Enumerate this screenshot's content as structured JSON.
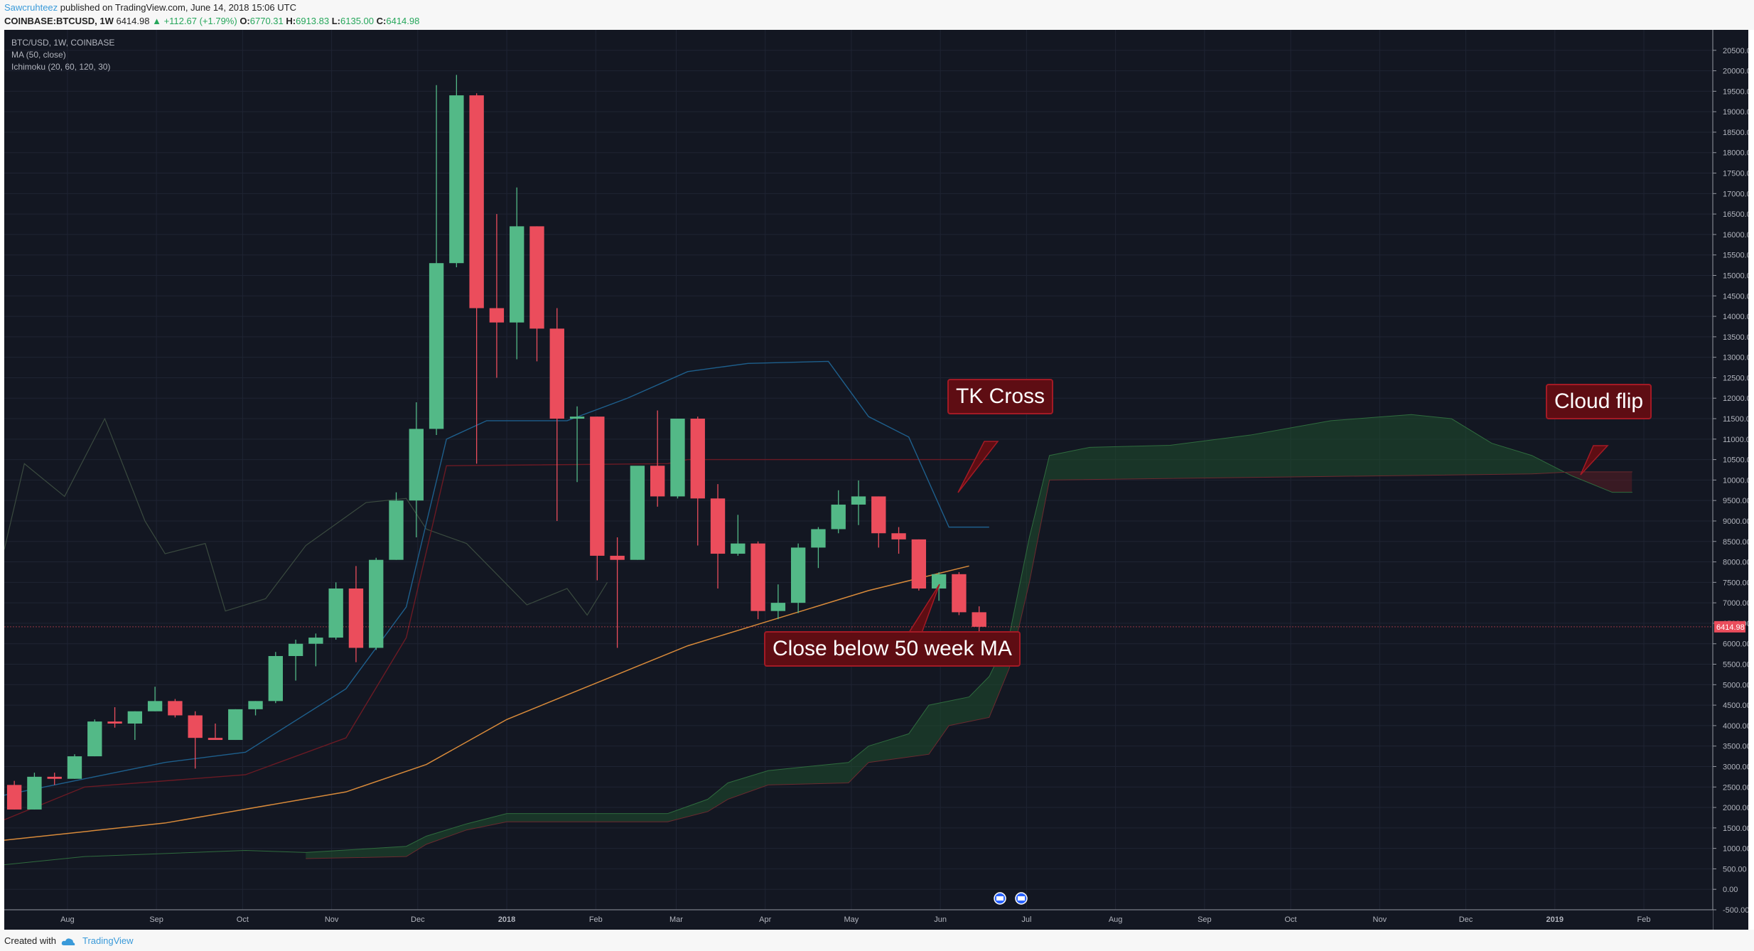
{
  "header": {
    "publisher": "Sawcruhteez",
    "published_text": " published on TradingView.com, June 14, 2018 15:06 UTC",
    "symbol": "COINBASE:BTCUSD, 1W",
    "last": "6414.98",
    "change": "▲ +112.67 (+1.79%)",
    "open_label": "O:",
    "open": "6770.31",
    "high_label": "H:",
    "high": "6913.83",
    "low_label": "L:",
    "low": "6135.00",
    "close_label": "C:",
    "close": "6414.98"
  },
  "legend": {
    "line1": "BTC/USD, 1W, COINBASE",
    "line2": "MA (50, close)",
    "line3": "Ichimoku (20, 60, 120, 30)"
  },
  "footer": {
    "created_with": "Created with",
    "brand": "TradingView"
  },
  "annotations": {
    "tk_cross": "TK Cross",
    "close_below": "Close below 50 week MA",
    "cloud_flip": "Cloud flip"
  },
  "colors": {
    "background": "#131722",
    "up": "#53b987",
    "down": "#eb4d5c",
    "ma": "#d88a3a",
    "tenkan": "#1e5f8c",
    "kijun": "#6b1a24",
    "cloud_green": "#1f4e2e",
    "cloud_red": "#5a1d24",
    "price_label": "#eb4d5c"
  },
  "chart_data": {
    "type": "candlestick",
    "symbol": "BTC/USD",
    "interval": "1W",
    "exchange": "COINBASE",
    "ylim": [
      -500,
      21000
    ],
    "y_ticks": [
      "20500.00",
      "20000.00",
      "19500.00",
      "19000.00",
      "18500.00",
      "18000.00",
      "17500.00",
      "17000.00",
      "16500.00",
      "16000.00",
      "15500.00",
      "15000.00",
      "14500.00",
      "14000.00",
      "13500.00",
      "13000.00",
      "12500.00",
      "12000.00",
      "11500.00",
      "11000.00",
      "10500.00",
      "10000.00",
      "9500.00",
      "9000.00",
      "8500.00",
      "8000.00",
      "7500.00",
      "7000.00",
      "6500.00",
      "6000.00",
      "5500.00",
      "5000.00",
      "4500.00",
      "4000.00",
      "3500.00",
      "3000.00",
      "2500.00",
      "2000.00",
      "1500.00",
      "1000.00",
      "500.00",
      "0.00",
      "-500.00"
    ],
    "x_ticks": [
      {
        "label": "Aug",
        "date": "2017-08-01"
      },
      {
        "label": "Sep",
        "date": "2017-09-01"
      },
      {
        "label": "Oct",
        "date": "2017-10-01"
      },
      {
        "label": "Nov",
        "date": "2017-11-01"
      },
      {
        "label": "Dec",
        "date": "2017-12-01"
      },
      {
        "label": "2018",
        "date": "2018-01-01"
      },
      {
        "label": "Feb",
        "date": "2018-02-01"
      },
      {
        "label": "Mar",
        "date": "2018-03-01"
      },
      {
        "label": "Apr",
        "date": "2018-04-01"
      },
      {
        "label": "May",
        "date": "2018-05-01"
      },
      {
        "label": "Jun",
        "date": "2018-06-01"
      },
      {
        "label": "Jul",
        "date": "2018-07-01"
      },
      {
        "label": "Aug",
        "date": "2018-08-01"
      },
      {
        "label": "Sep",
        "date": "2018-09-01"
      },
      {
        "label": "Oct",
        "date": "2018-10-01"
      },
      {
        "label": "Nov",
        "date": "2018-11-01"
      },
      {
        "label": "Dec",
        "date": "2018-12-01"
      },
      {
        "label": "2019",
        "date": "2019-01-01"
      },
      {
        "label": "Feb",
        "date": "2019-02-01"
      }
    ],
    "date_range": [
      "2017-07-10",
      "2019-02-25"
    ],
    "last_price_label": "6414.98",
    "candles": [
      {
        "date": "2017-07-10",
        "o": 2550,
        "h": 2650,
        "l": 1950,
        "c": 1950
      },
      {
        "date": "2017-07-17",
        "o": 1950,
        "h": 2850,
        "l": 1950,
        "c": 2750
      },
      {
        "date": "2017-07-24",
        "o": 2750,
        "h": 2850,
        "l": 2550,
        "c": 2700
      },
      {
        "date": "2017-07-31",
        "o": 2700,
        "h": 3300,
        "l": 2700,
        "c": 3250
      },
      {
        "date": "2017-08-07",
        "o": 3250,
        "h": 4150,
        "l": 3250,
        "c": 4100
      },
      {
        "date": "2017-08-14",
        "o": 4100,
        "h": 4450,
        "l": 3950,
        "c": 4050
      },
      {
        "date": "2017-08-21",
        "o": 4050,
        "h": 4350,
        "l": 3650,
        "c": 4350
      },
      {
        "date": "2017-08-28",
        "o": 4350,
        "h": 4950,
        "l": 4350,
        "c": 4600
      },
      {
        "date": "2017-09-04",
        "o": 4600,
        "h": 4650,
        "l": 4200,
        "c": 4250
      },
      {
        "date": "2017-09-11",
        "o": 4250,
        "h": 4350,
        "l": 2950,
        "c": 3700
      },
      {
        "date": "2017-09-18",
        "o": 3700,
        "h": 4050,
        "l": 3650,
        "c": 3650
      },
      {
        "date": "2017-09-25",
        "o": 3650,
        "h": 4400,
        "l": 3650,
        "c": 4400
      },
      {
        "date": "2017-10-02",
        "o": 4400,
        "h": 4600,
        "l": 4250,
        "c": 4600
      },
      {
        "date": "2017-10-09",
        "o": 4600,
        "h": 5800,
        "l": 4550,
        "c": 5700
      },
      {
        "date": "2017-10-16",
        "o": 5700,
        "h": 6100,
        "l": 5100,
        "c": 6000
      },
      {
        "date": "2017-10-23",
        "o": 6000,
        "h": 6250,
        "l": 5450,
        "c": 6150
      },
      {
        "date": "2017-10-30",
        "o": 6150,
        "h": 7500,
        "l": 6100,
        "c": 7350
      },
      {
        "date": "2017-11-06",
        "o": 7350,
        "h": 7900,
        "l": 5550,
        "c": 5900
      },
      {
        "date": "2017-11-13",
        "o": 5900,
        "h": 8100,
        "l": 5850,
        "c": 8050
      },
      {
        "date": "2017-11-20",
        "o": 8050,
        "h": 9700,
        "l": 8050,
        "c": 9500
      },
      {
        "date": "2017-11-27",
        "o": 9500,
        "h": 11900,
        "l": 8600,
        "c": 11250
      },
      {
        "date": "2017-12-04",
        "o": 11250,
        "h": 19650,
        "l": 11100,
        "c": 15300
      },
      {
        "date": "2017-12-11",
        "o": 15300,
        "h": 19900,
        "l": 15200,
        "c": 19400
      },
      {
        "date": "2017-12-18",
        "o": 19400,
        "h": 19450,
        "l": 10400,
        "c": 14200
      },
      {
        "date": "2017-12-25",
        "o": 14200,
        "h": 16500,
        "l": 12500,
        "c": 13850
      },
      {
        "date": "2018-01-01",
        "o": 13850,
        "h": 17150,
        "l": 12950,
        "c": 16200
      },
      {
        "date": "2018-01-08",
        "o": 16200,
        "h": 16200,
        "l": 12900,
        "c": 13700
      },
      {
        "date": "2018-01-15",
        "o": 13700,
        "h": 14200,
        "l": 9000,
        "c": 11500
      },
      {
        "date": "2018-01-22",
        "o": 11500,
        "h": 11800,
        "l": 9950,
        "c": 11550
      },
      {
        "date": "2018-01-29",
        "o": 11550,
        "h": 11550,
        "l": 7550,
        "c": 8150
      },
      {
        "date": "2018-02-05",
        "o": 8150,
        "h": 8600,
        "l": 5900,
        "c": 8050
      },
      {
        "date": "2018-02-12",
        "o": 8050,
        "h": 10300,
        "l": 8050,
        "c": 10350
      },
      {
        "date": "2018-02-19",
        "o": 10350,
        "h": 11700,
        "l": 9350,
        "c": 9600
      },
      {
        "date": "2018-02-26",
        "o": 9600,
        "h": 11500,
        "l": 9550,
        "c": 11500
      },
      {
        "date": "2018-03-05",
        "o": 11500,
        "h": 11550,
        "l": 8400,
        "c": 9550
      },
      {
        "date": "2018-03-12",
        "o": 9550,
        "h": 9900,
        "l": 7350,
        "c": 8200
      },
      {
        "date": "2018-03-19",
        "o": 8200,
        "h": 9150,
        "l": 8150,
        "c": 8450
      },
      {
        "date": "2018-03-26",
        "o": 8450,
        "h": 8500,
        "l": 6600,
        "c": 6800
      },
      {
        "date": "2018-04-02",
        "o": 6800,
        "h": 7450,
        "l": 6600,
        "c": 7000
      },
      {
        "date": "2018-04-09",
        "o": 7000,
        "h": 8450,
        "l": 6750,
        "c": 8350
      },
      {
        "date": "2018-04-16",
        "o": 8350,
        "h": 8850,
        "l": 7850,
        "c": 8800
      },
      {
        "date": "2018-04-23",
        "o": 8800,
        "h": 9750,
        "l": 8700,
        "c": 9400
      },
      {
        "date": "2018-04-30",
        "o": 9400,
        "h": 9990,
        "l": 8900,
        "c": 9600
      },
      {
        "date": "2018-05-07",
        "o": 9600,
        "h": 9600,
        "l": 8350,
        "c": 8700
      },
      {
        "date": "2018-05-14",
        "o": 8700,
        "h": 8850,
        "l": 8200,
        "c": 8550
      },
      {
        "date": "2018-05-21",
        "o": 8550,
        "h": 8550,
        "l": 7300,
        "c": 7350
      },
      {
        "date": "2018-05-28",
        "o": 7350,
        "h": 7750,
        "l": 7050,
        "c": 7700
      },
      {
        "date": "2018-06-04",
        "o": 7700,
        "h": 7750,
        "l": 6700,
        "c": 6770
      },
      {
        "date": "2018-06-11",
        "o": 6770,
        "h": 6914,
        "l": 6135,
        "c": 6415
      }
    ],
    "ma50": [
      {
        "date": "2017-07-10",
        "v": 1200
      },
      {
        "date": "2017-09-04",
        "v": 1620
      },
      {
        "date": "2017-11-06",
        "v": 2380
      },
      {
        "date": "2017-12-04",
        "v": 3050
      },
      {
        "date": "2018-01-01",
        "v": 4150
      },
      {
        "date": "2018-02-05",
        "v": 5150
      },
      {
        "date": "2018-03-05",
        "v": 5950
      },
      {
        "date": "2018-04-02",
        "v": 6550
      },
      {
        "date": "2018-05-07",
        "v": 7300
      },
      {
        "date": "2018-06-11",
        "v": 7900
      }
    ],
    "tenkan": [
      {
        "date": "2017-07-10",
        "v": 2300
      },
      {
        "date": "2017-08-07",
        "v": 2700
      },
      {
        "date": "2017-09-04",
        "v": 3100
      },
      {
        "date": "2017-10-02",
        "v": 3350
      },
      {
        "date": "2017-11-06",
        "v": 4900
      },
      {
        "date": "2017-11-27",
        "v": 6900
      },
      {
        "date": "2017-12-11",
        "v": 11000
      },
      {
        "date": "2017-12-25",
        "v": 11450
      },
      {
        "date": "2018-01-22",
        "v": 11450
      },
      {
        "date": "2018-02-12",
        "v": 12000
      },
      {
        "date": "2018-03-05",
        "v": 12650
      },
      {
        "date": "2018-03-26",
        "v": 12850
      },
      {
        "date": "2018-04-23",
        "v": 12900
      },
      {
        "date": "2018-05-07",
        "v": 11550
      },
      {
        "date": "2018-05-21",
        "v": 11050
      },
      {
        "date": "2018-06-04",
        "v": 8850
      },
      {
        "date": "2018-06-18",
        "v": 8850
      }
    ],
    "kijun": [
      {
        "date": "2017-07-10",
        "v": 1700
      },
      {
        "date": "2017-08-07",
        "v": 2500
      },
      {
        "date": "2017-10-02",
        "v": 2800
      },
      {
        "date": "2017-11-06",
        "v": 3700
      },
      {
        "date": "2017-11-27",
        "v": 6150
      },
      {
        "date": "2017-12-11",
        "v": 10350
      },
      {
        "date": "2018-02-26",
        "v": 10400
      },
      {
        "date": "2018-03-05",
        "v": 10500
      },
      {
        "date": "2018-06-18",
        "v": 10500
      }
    ],
    "chikou": [
      {
        "date": "2017-07-10",
        "v": 8300
      },
      {
        "date": "2017-07-17",
        "v": 10400
      },
      {
        "date": "2017-07-31",
        "v": 9600
      },
      {
        "date": "2017-08-14",
        "v": 11500
      },
      {
        "date": "2017-08-28",
        "v": 9000
      },
      {
        "date": "2017-09-04",
        "v": 8200
      },
      {
        "date": "2017-09-18",
        "v": 8450
      },
      {
        "date": "2017-09-25",
        "v": 6800
      },
      {
        "date": "2017-10-09",
        "v": 7100
      },
      {
        "date": "2017-10-23",
        "v": 8400
      },
      {
        "date": "2017-11-13",
        "v": 9450
      },
      {
        "date": "2017-11-27",
        "v": 9550
      },
      {
        "date": "2017-12-04",
        "v": 8800
      },
      {
        "date": "2017-12-18",
        "v": 8450
      },
      {
        "date": "2018-01-08",
        "v": 6950
      },
      {
        "date": "2018-01-22",
        "v": 7350
      },
      {
        "date": "2018-01-29",
        "v": 6700
      },
      {
        "date": "2018-02-05",
        "v": 7500
      }
    ],
    "cloud_top": [
      {
        "date": "2017-07-10",
        "v": 600
      },
      {
        "date": "2017-08-07",
        "v": 800
      },
      {
        "date": "2017-10-02",
        "v": 950
      },
      {
        "date": "2017-10-23",
        "v": 900
      },
      {
        "date": "2017-11-27",
        "v": 1050
      },
      {
        "date": "2017-12-04",
        "v": 1300
      },
      {
        "date": "2017-12-18",
        "v": 1600
      },
      {
        "date": "2018-01-01",
        "v": 1850
      },
      {
        "date": "2018-02-26",
        "v": 1850
      },
      {
        "date": "2018-03-12",
        "v": 2200
      },
      {
        "date": "2018-03-19",
        "v": 2600
      },
      {
        "date": "2018-04-02",
        "v": 2900
      },
      {
        "date": "2018-04-30",
        "v": 3100
      },
      {
        "date": "2018-05-07",
        "v": 3500
      },
      {
        "date": "2018-05-21",
        "v": 3800
      },
      {
        "date": "2018-05-28",
        "v": 4500
      },
      {
        "date": "2018-06-11",
        "v": 4700
      },
      {
        "date": "2018-06-18",
        "v": 5200
      },
      {
        "date": "2018-06-25",
        "v": 6200
      },
      {
        "date": "2018-07-02",
        "v": 8600
      },
      {
        "date": "2018-07-09",
        "v": 10600
      },
      {
        "date": "2018-07-23",
        "v": 10800
      },
      {
        "date": "2018-08-20",
        "v": 10850
      },
      {
        "date": "2018-09-17",
        "v": 11100
      },
      {
        "date": "2018-10-15",
        "v": 11450
      },
      {
        "date": "2018-11-12",
        "v": 11600
      },
      {
        "date": "2018-11-26",
        "v": 11500
      },
      {
        "date": "2018-12-10",
        "v": 10900
      },
      {
        "date": "2018-12-24",
        "v": 10600
      },
      {
        "date": "2019-01-07",
        "v": 10100
      },
      {
        "date": "2019-01-21",
        "v": 9700
      },
      {
        "date": "2019-01-28",
        "v": 9700
      }
    ],
    "cloud_bottom": [
      {
        "date": "2017-10-23",
        "v": 750
      },
      {
        "date": "2017-11-27",
        "v": 800
      },
      {
        "date": "2017-12-04",
        "v": 1100
      },
      {
        "date": "2017-12-18",
        "v": 1450
      },
      {
        "date": "2018-01-01",
        "v": 1650
      },
      {
        "date": "2018-02-26",
        "v": 1650
      },
      {
        "date": "2018-03-12",
        "v": 1900
      },
      {
        "date": "2018-03-19",
        "v": 2200
      },
      {
        "date": "2018-04-02",
        "v": 2550
      },
      {
        "date": "2018-04-30",
        "v": 2600
      },
      {
        "date": "2018-05-07",
        "v": 3100
      },
      {
        "date": "2018-05-28",
        "v": 3300
      },
      {
        "date": "2018-06-04",
        "v": 4000
      },
      {
        "date": "2018-06-18",
        "v": 4200
      },
      {
        "date": "2018-06-25",
        "v": 5400
      },
      {
        "date": "2018-07-02",
        "v": 7500
      },
      {
        "date": "2018-07-09",
        "v": 10000
      },
      {
        "date": "2018-12-24",
        "v": 10150
      },
      {
        "date": "2019-01-07",
        "v": 10200
      },
      {
        "date": "2019-01-28",
        "v": 10200
      }
    ]
  }
}
